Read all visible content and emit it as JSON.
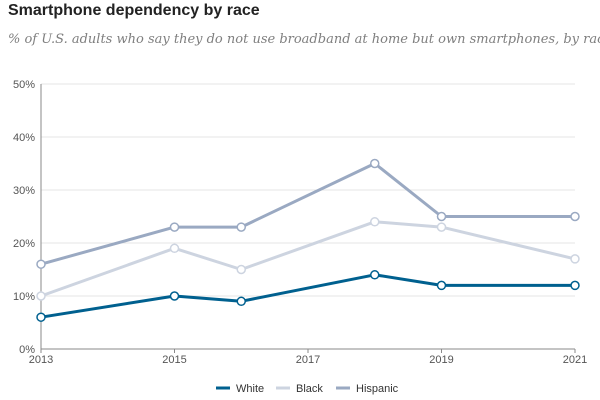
{
  "header": {
    "title": "Smartphone dependency by race",
    "subtitle": "% of U.S. adults who say they do not use broadband at home but own smartphones, by race"
  },
  "chart_data": {
    "type": "line",
    "x": [
      2013,
      2015,
      2016,
      2018,
      2019,
      2021
    ],
    "series": [
      {
        "name": "White",
        "values": [
          6,
          10,
          9,
          14,
          12,
          12
        ],
        "color": "#00608f"
      },
      {
        "name": "Black",
        "values": [
          10,
          19,
          15,
          24,
          23,
          17
        ],
        "color": "#cdd4e0"
      },
      {
        "name": "Hispanic",
        "values": [
          16,
          23,
          23,
          35,
          25,
          25
        ],
        "color": "#9aa9c2"
      }
    ],
    "xlim": [
      2013,
      2021
    ],
    "ylim": [
      0,
      50
    ],
    "x_ticks": [
      2013,
      2015,
      2017,
      2019,
      2021
    ],
    "y_ticks": [
      0,
      10,
      20,
      30,
      40,
      50
    ],
    "y_tick_labels": [
      "0%",
      "10%",
      "20%",
      "30%",
      "40%",
      "50%"
    ],
    "grid": true,
    "legend_position": "bottom"
  }
}
